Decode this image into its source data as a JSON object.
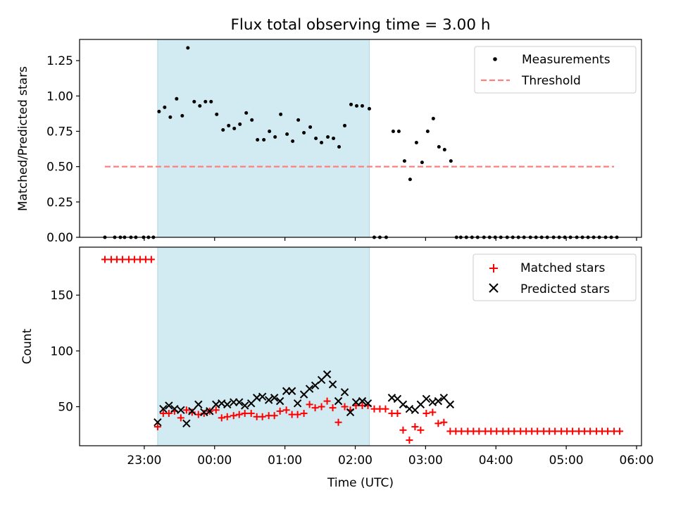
{
  "chart_data": [
    {
      "type": "scatter",
      "title": "Flux total observing time = 3.00 h",
      "xlabel": "",
      "ylabel": "Matched/Predicted stars",
      "xlim": [
        22.08,
        30.07
      ],
      "ylim": [
        0,
        1.4
      ],
      "yticks": [
        0,
        0.25,
        0.5,
        0.75,
        1,
        1.25
      ],
      "ytick_labels": [
        "0.00",
        "0.25",
        "0.50",
        "0.75",
        "1.00",
        "1.25"
      ],
      "shaded_interval": [
        23.19,
        26.2
      ],
      "shade_color": "#add8e6",
      "threshold": {
        "name": "Threshold",
        "value": 0.5,
        "x_range": [
          22.44,
          29.68
        ],
        "color": "#ff7f7f"
      },
      "legend": {
        "position": "top-right",
        "entries": [
          "Measurements",
          "Threshold"
        ]
      },
      "series": [
        {
          "name": "Measurements",
          "color": "#000000",
          "x": [
            22.44,
            22.58,
            22.66,
            22.72,
            22.81,
            22.88,
            22.99,
            23.06,
            23.13,
            23.21,
            23.29,
            23.37,
            23.46,
            23.54,
            23.62,
            23.71,
            23.79,
            23.87,
            23.95,
            24.03,
            24.12,
            24.2,
            24.28,
            24.36,
            24.45,
            24.53,
            24.61,
            24.7,
            24.78,
            24.86,
            24.94,
            25.03,
            25.11,
            25.19,
            25.27,
            25.36,
            25.44,
            25.52,
            25.61,
            25.69,
            25.77,
            25.85,
            25.94,
            26.02,
            26.1,
            26.2,
            26.27,
            26.35,
            26.44,
            26.54,
            26.62,
            26.7,
            26.78,
            26.87,
            26.95,
            27.03,
            27.11,
            27.19,
            27.27,
            27.36,
            27.44,
            27.5,
            27.58,
            27.66,
            27.74,
            27.83,
            27.91,
            27.99,
            28.07,
            28.16,
            28.24,
            28.32,
            28.4,
            28.49,
            28.57,
            28.65,
            28.73,
            28.82,
            28.9,
            28.98,
            29.06,
            29.15,
            29.23,
            29.31,
            29.39,
            29.47,
            29.56,
            29.64,
            29.72
          ],
          "y": [
            0,
            0,
            0,
            0,
            0,
            0,
            0,
            0,
            0,
            0.89,
            0.92,
            0.85,
            0.98,
            0.86,
            1.34,
            0.96,
            0.93,
            0.96,
            0.96,
            0.87,
            0.76,
            0.79,
            0.77,
            0.8,
            0.88,
            0.83,
            0.69,
            0.69,
            0.75,
            0.71,
            0.87,
            0.73,
            0.68,
            0.83,
            0.74,
            0.78,
            0.7,
            0.67,
            0.71,
            0.7,
            0.64,
            0.79,
            0.94,
            0.93,
            0.93,
            0.91,
            0,
            0,
            0,
            0.75,
            0.75,
            0.54,
            0.41,
            0.67,
            0.53,
            0.75,
            0.84,
            0.64,
            0.62,
            0.54,
            0,
            0,
            0,
            0,
            0,
            0,
            0,
            0,
            0,
            0,
            0,
            0,
            0,
            0,
            0,
            0,
            0,
            0,
            0,
            0,
            0,
            0,
            0,
            0,
            0,
            0,
            0,
            0,
            0
          ]
        }
      ]
    },
    {
      "type": "scatter",
      "title": "",
      "xlabel": "Time (UTC)",
      "ylabel": "Count",
      "xlim": [
        22.08,
        30.07
      ],
      "ylim": [
        15,
        193
      ],
      "yticks": [
        50,
        100,
        150
      ],
      "ytick_labels": [
        "50",
        "100",
        "150"
      ],
      "xticks": [
        23,
        24,
        25,
        26,
        27,
        28,
        29,
        30
      ],
      "xtick_labels": [
        "23:00",
        "00:00",
        "01:00",
        "02:00",
        "03:00",
        "04:00",
        "05:00",
        "06:00"
      ],
      "shaded_interval": [
        23.19,
        26.2
      ],
      "shade_color": "#add8e6",
      "legend": {
        "position": "top-right",
        "entries": [
          "Matched stars",
          "Predicted stars"
        ]
      },
      "series": [
        {
          "name": "Matched stars",
          "marker": "plus",
          "color": "#ff0000",
          "x": [
            22.44,
            22.53,
            22.61,
            22.69,
            22.78,
            22.86,
            22.94,
            23.02,
            23.1,
            23.19,
            23.27,
            23.35,
            23.43,
            23.52,
            23.6,
            23.68,
            23.77,
            23.85,
            23.93,
            24.02,
            24.1,
            24.18,
            24.27,
            24.35,
            24.43,
            24.52,
            24.6,
            24.68,
            24.77,
            24.85,
            24.93,
            25.02,
            25.1,
            25.18,
            25.27,
            25.35,
            25.43,
            25.52,
            25.6,
            25.68,
            25.76,
            25.85,
            25.93,
            26.01,
            26.1,
            26.18,
            26.27,
            26.35,
            26.43,
            26.52,
            26.6,
            26.68,
            26.77,
            26.85,
            26.93,
            27.01,
            27.1,
            27.18,
            27.26,
            27.35,
            27.43,
            27.51,
            27.6,
            27.68,
            27.76,
            27.85,
            27.93,
            28.01,
            28.1,
            28.18,
            28.26,
            28.35,
            28.43,
            28.51,
            28.59,
            28.68,
            28.76,
            28.84,
            28.93,
            29.01,
            29.09,
            29.18,
            29.26,
            29.34,
            29.43,
            29.51,
            29.59,
            29.68,
            29.76
          ],
          "y": [
            182,
            182,
            182,
            182,
            182,
            182,
            182,
            182,
            182,
            32,
            44,
            44,
            46,
            40,
            47,
            45,
            43,
            44,
            46,
            47,
            40,
            41,
            42,
            43,
            44,
            44,
            41,
            41,
            42,
            42,
            46,
            47,
            43,
            43,
            44,
            52,
            49,
            50,
            55,
            49,
            36,
            50,
            47,
            51,
            51,
            51,
            48,
            48,
            48,
            44,
            44,
            29,
            20,
            32,
            29,
            44,
            45,
            35,
            36,
            28,
            28,
            28,
            28,
            28,
            28,
            28,
            28,
            28,
            28,
            28,
            28,
            28,
            28,
            28,
            28,
            28,
            28,
            28,
            28,
            28,
            28,
            28,
            28,
            28,
            28,
            28,
            28,
            28,
            28
          ]
        },
        {
          "name": "Predicted stars",
          "marker": "x",
          "color": "#000000",
          "x": [
            23.19,
            23.27,
            23.35,
            23.43,
            23.52,
            23.6,
            23.68,
            23.77,
            23.85,
            23.93,
            24.02,
            24.1,
            24.18,
            24.27,
            24.35,
            24.43,
            24.52,
            24.6,
            24.68,
            24.77,
            24.85,
            24.93,
            25.02,
            25.1,
            25.18,
            25.27,
            25.35,
            25.43,
            25.52,
            25.6,
            25.68,
            25.76,
            25.85,
            25.93,
            26.01,
            26.1,
            26.18,
            26.52,
            26.6,
            26.68,
            26.77,
            26.85,
            26.93,
            27.01,
            27.1,
            27.18,
            27.26,
            27.35
          ],
          "y": [
            36,
            48,
            51,
            48,
            47,
            35,
            46,
            52,
            45,
            46,
            52,
            53,
            52,
            54,
            54,
            51,
            53,
            58,
            59,
            56,
            58,
            55,
            64,
            64,
            53,
            61,
            66,
            69,
            74,
            79,
            70,
            55,
            63,
            45,
            54,
            55,
            53,
            58,
            57,
            52,
            48,
            47,
            52,
            57,
            54,
            55,
            58,
            52
          ]
        }
      ]
    }
  ]
}
